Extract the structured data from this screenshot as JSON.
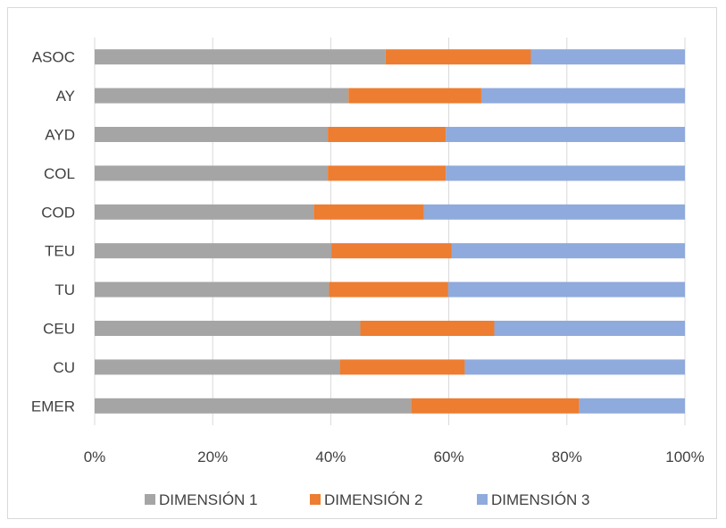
{
  "chart_data": {
    "type": "bar",
    "orientation": "horizontal",
    "stacked": "percent",
    "title": "",
    "xlabel": "",
    "ylabel": "",
    "categories": [
      "ASOC",
      "AY",
      "AYD",
      "COL",
      "COD",
      "TEU",
      "TU",
      "CEU",
      "CU",
      "EMER"
    ],
    "series": [
      {
        "name": "DIMENSIÓN 1",
        "color": "#a5a5a5",
        "values": [
          49.3,
          43.0,
          39.5,
          39.5,
          37.1,
          40.1,
          39.7,
          45.0,
          41.5,
          53.6
        ]
      },
      {
        "name": "DIMENSIÓN 2",
        "color": "#ed7d31",
        "values": [
          24.6,
          22.5,
          20.0,
          20.0,
          18.7,
          20.4,
          20.2,
          22.7,
          21.2,
          28.5
        ]
      },
      {
        "name": "DIMENSIÓN 3",
        "color": "#8faadc",
        "values": [
          26.1,
          34.5,
          40.5,
          40.5,
          44.2,
          39.5,
          40.1,
          32.3,
          37.3,
          17.9
        ]
      }
    ],
    "xlim": [
      0,
      100
    ],
    "x_ticks": [
      "0%",
      "20%",
      "40%",
      "60%",
      "80%",
      "100%"
    ],
    "grid": true,
    "legend_position": "bottom"
  }
}
